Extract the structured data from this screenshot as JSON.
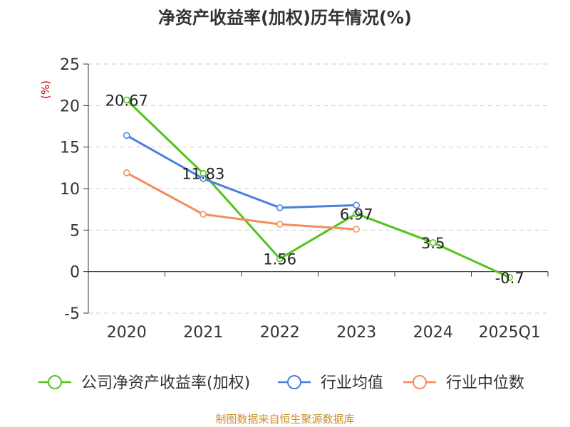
{
  "chart_data": {
    "type": "line",
    "title": "净资产收益率(加权)历年情况(%)",
    "ylabel": "(%)",
    "xlabel": "",
    "categories": [
      "2020",
      "2021",
      "2022",
      "2023",
      "2024",
      "2025Q1"
    ],
    "ylim": [
      -5,
      25
    ],
    "yticks": [
      -5,
      0,
      5,
      10,
      15,
      20,
      25
    ],
    "grid": true,
    "legend_position": "bottom",
    "series": [
      {
        "name": "公司净资产收益率(加权)",
        "color": "#52c41a",
        "values": [
          20.67,
          11.83,
          1.56,
          6.97,
          3.5,
          -0.7
        ],
        "data_labels": [
          "20.67",
          "11.83",
          "1.56",
          "6.97",
          "3.5",
          "-0.7"
        ]
      },
      {
        "name": "行业均值",
        "color": "#4a7fdc",
        "values": [
          16.4,
          11.2,
          7.7,
          8.0,
          null,
          null
        ]
      },
      {
        "name": "行业中位数",
        "color": "#f58c5a",
        "values": [
          11.9,
          6.9,
          5.7,
          5.1,
          null,
          null
        ]
      }
    ],
    "source": "制图数据来自恒生聚源数据库"
  }
}
